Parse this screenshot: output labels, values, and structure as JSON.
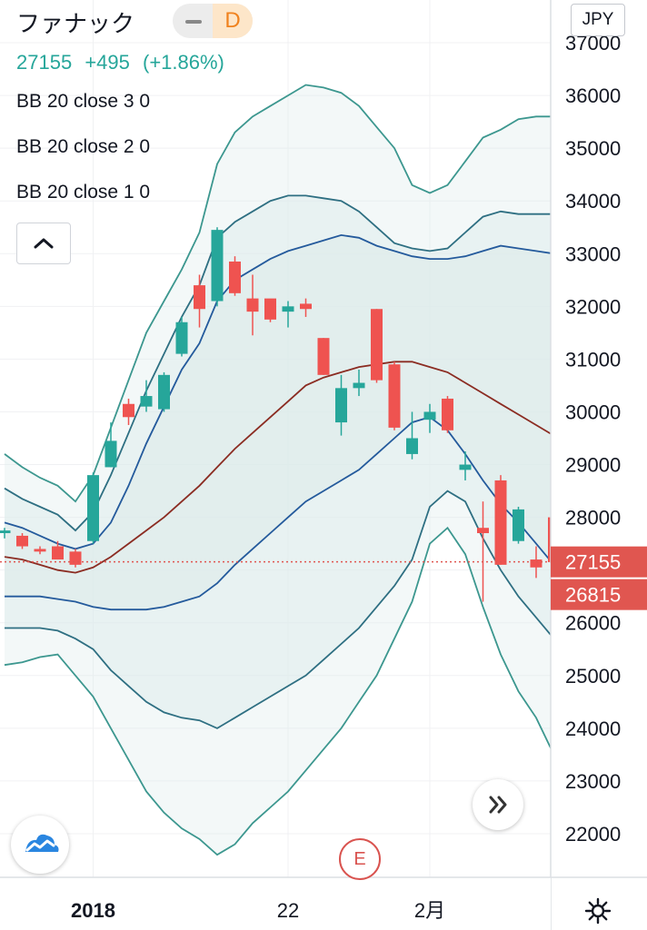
{
  "header": {
    "title": "ファナック",
    "interval": "D",
    "last": "27155",
    "change": "+495",
    "change_pct": "(+1.86%)",
    "currency": "JPY"
  },
  "indicators": [
    {
      "label": "BB 20 close 3 0"
    },
    {
      "label": "BB 20 close 2 0"
    },
    {
      "label": "BB 20 close 1 0"
    }
  ],
  "icons": {
    "collapse": "chevron-up-icon",
    "logo": "tradingview-logo-icon",
    "scroll": "double-chevron-right-icon",
    "earnings": "earnings-e-icon",
    "settings": "gear-icon"
  },
  "earnings_badge": "E",
  "colors": {
    "up": "#26a69a",
    "down": "#ef5350",
    "outer_band": "#3c978f",
    "mid_band": "#2e6f82",
    "inner_band": "#245a9c",
    "basis": "#8b2c22",
    "band_fill": "#dcebea",
    "price_label": "#e05650"
  },
  "chart_data": {
    "type": "candlestick",
    "y_axis": {
      "ticks": [
        "37000",
        "36000",
        "35000",
        "34000",
        "33000",
        "32000",
        "31000",
        "30000",
        "29000",
        "28000",
        "27000",
        "26000",
        "25000",
        "24000",
        "23000",
        "22000"
      ],
      "range": [
        21000,
        37300
      ]
    },
    "x_axis": {
      "labels": [
        {
          "text": "2018",
          "index": 5,
          "bold": true
        },
        {
          "text": "22",
          "index": 16,
          "bold": false
        },
        {
          "text": "2月",
          "index": 24,
          "bold": false
        }
      ],
      "count": 32
    },
    "price_lines": [
      {
        "value": 27155,
        "label": "27155"
      },
      {
        "value": 26815,
        "label": "26815"
      }
    ],
    "candles": [
      {
        "o": 27700,
        "h": 27800,
        "l": 27600,
        "c": 27750
      },
      {
        "o": 27650,
        "h": 27700,
        "l": 27400,
        "c": 27450
      },
      {
        "o": 27400,
        "h": 27450,
        "l": 27300,
        "c": 27350
      },
      {
        "o": 27450,
        "h": 27550,
        "l": 27200,
        "c": 27200
      },
      {
        "o": 27350,
        "h": 27400,
        "l": 27050,
        "c": 27100
      },
      {
        "o": 27550,
        "h": 28850,
        "l": 27500,
        "c": 28800
      },
      {
        "o": 28950,
        "h": 29800,
        "l": 28950,
        "c": 29450
      },
      {
        "o": 30150,
        "h": 30250,
        "l": 29750,
        "c": 29900
      },
      {
        "o": 30100,
        "h": 30600,
        "l": 30000,
        "c": 30300
      },
      {
        "o": 30050,
        "h": 30750,
        "l": 30000,
        "c": 30700
      },
      {
        "o": 31100,
        "h": 31800,
        "l": 31050,
        "c": 31700
      },
      {
        "o": 32400,
        "h": 32600,
        "l": 31600,
        "c": 31950
      },
      {
        "o": 32100,
        "h": 33500,
        "l": 32000,
        "c": 33450
      },
      {
        "o": 32850,
        "h": 32950,
        "l": 32200,
        "c": 32250
      },
      {
        "o": 32150,
        "h": 32600,
        "l": 31450,
        "c": 31900
      },
      {
        "o": 32150,
        "h": 32100,
        "l": 31700,
        "c": 31750
      },
      {
        "o": 31900,
        "h": 32100,
        "l": 31600,
        "c": 32000
      },
      {
        "o": 32050,
        "h": 32150,
        "l": 31800,
        "c": 31950
      },
      {
        "o": 31400,
        "h": 31400,
        "l": 30700,
        "c": 30700
      },
      {
        "o": 29800,
        "h": 30700,
        "l": 29550,
        "c": 30450
      },
      {
        "o": 30450,
        "h": 30800,
        "l": 30300,
        "c": 30550
      },
      {
        "o": 31950,
        "h": 31950,
        "l": 30550,
        "c": 30600
      },
      {
        "o": 30900,
        "h": 30950,
        "l": 29650,
        "c": 29700
      },
      {
        "o": 29200,
        "h": 30000,
        "l": 29100,
        "c": 29500
      },
      {
        "o": 29850,
        "h": 30150,
        "l": 29600,
        "c": 30000
      },
      {
        "o": 30250,
        "h": 30300,
        "l": 29600,
        "c": 29650
      },
      {
        "o": 28900,
        "h": 29250,
        "l": 28700,
        "c": 29000
      },
      {
        "o": 27800,
        "h": 28300,
        "l": 26400,
        "c": 27700
      },
      {
        "o": 28700,
        "h": 28800,
        "l": 27100,
        "c": 27100
      },
      {
        "o": 27550,
        "h": 28200,
        "l": 27500,
        "c": 28150
      },
      {
        "o": 27200,
        "h": 27450,
        "l": 26850,
        "c": 27050
      },
      {
        "o": 28000,
        "h": 28000,
        "l": 26800,
        "c": 27150
      }
    ],
    "series": [
      {
        "name": "BB 20 close 3 0 upper",
        "values": [
          29200,
          28950,
          28750,
          28600,
          28300,
          28800,
          29700,
          30600,
          31500,
          32100,
          32700,
          33400,
          34700,
          35300,
          35600,
          35800,
          36000,
          36200,
          36150,
          36050,
          35800,
          35400,
          35000,
          34300,
          34150,
          34300,
          34750,
          35200,
          35350,
          35550,
          35600,
          35600
        ]
      },
      {
        "name": "BB 20 close 2 0 upper",
        "values": [
          28550,
          28350,
          28200,
          28050,
          27750,
          28100,
          28800,
          29600,
          30400,
          31100,
          31800,
          32400,
          33300,
          33600,
          33800,
          34000,
          34100,
          34100,
          34050,
          34000,
          33800,
          33500,
          33200,
          33100,
          33050,
          33100,
          33400,
          33700,
          33800,
          33750,
          33750,
          33750
        ]
      },
      {
        "name": "BB 20 close 1 0 upper",
        "values": [
          27900,
          27800,
          27650,
          27500,
          27400,
          27500,
          27900,
          28600,
          29400,
          30100,
          30800,
          31300,
          32100,
          32500,
          32700,
          32900,
          33050,
          33150,
          33250,
          33350,
          33300,
          33150,
          33050,
          32950,
          32900,
          32900,
          32950,
          33050,
          33150,
          33100,
          33050,
          33000
        ]
      },
      {
        "name": "BB 20 close basis",
        "values": [
          27250,
          27200,
          27100,
          27000,
          26950,
          27050,
          27250,
          27500,
          27750,
          28000,
          28300,
          28600,
          28950,
          29300,
          29600,
          29900,
          30200,
          30500,
          30650,
          30750,
          30850,
          30900,
          30950,
          30950,
          30850,
          30750,
          30550,
          30350,
          30150,
          29950,
          29750,
          29550
        ]
      },
      {
        "name": "BB 20 close 1 0 lower",
        "values": [
          26500,
          26500,
          26500,
          26450,
          26400,
          26300,
          26250,
          26250,
          26250,
          26300,
          26400,
          26500,
          26750,
          27100,
          27400,
          27700,
          28000,
          28300,
          28500,
          28700,
          28900,
          29200,
          29500,
          29800,
          29900,
          29650,
          29200,
          28700,
          28250,
          27900,
          27500,
          27100
        ]
      },
      {
        "name": "BB 20 close 2 0 lower",
        "values": [
          25900,
          25900,
          25900,
          25850,
          25700,
          25500,
          25100,
          24800,
          24500,
          24300,
          24200,
          24150,
          24000,
          24200,
          24400,
          24600,
          24800,
          25000,
          25300,
          25600,
          25900,
          26300,
          26700,
          27200,
          28200,
          28500,
          28300,
          27600,
          27000,
          26500,
          26100,
          25700
        ]
      },
      {
        "name": "BB 20 close 3 0 lower",
        "values": [
          25200,
          25250,
          25350,
          25400,
          25000,
          24600,
          24000,
          23400,
          22800,
          22400,
          22100,
          21900,
          21600,
          21800,
          22200,
          22500,
          22800,
          23200,
          23600,
          24000,
          24500,
          25000,
          25700,
          26400,
          27500,
          27800,
          27300,
          26300,
          25400,
          24700,
          24200,
          23500
        ]
      }
    ]
  }
}
